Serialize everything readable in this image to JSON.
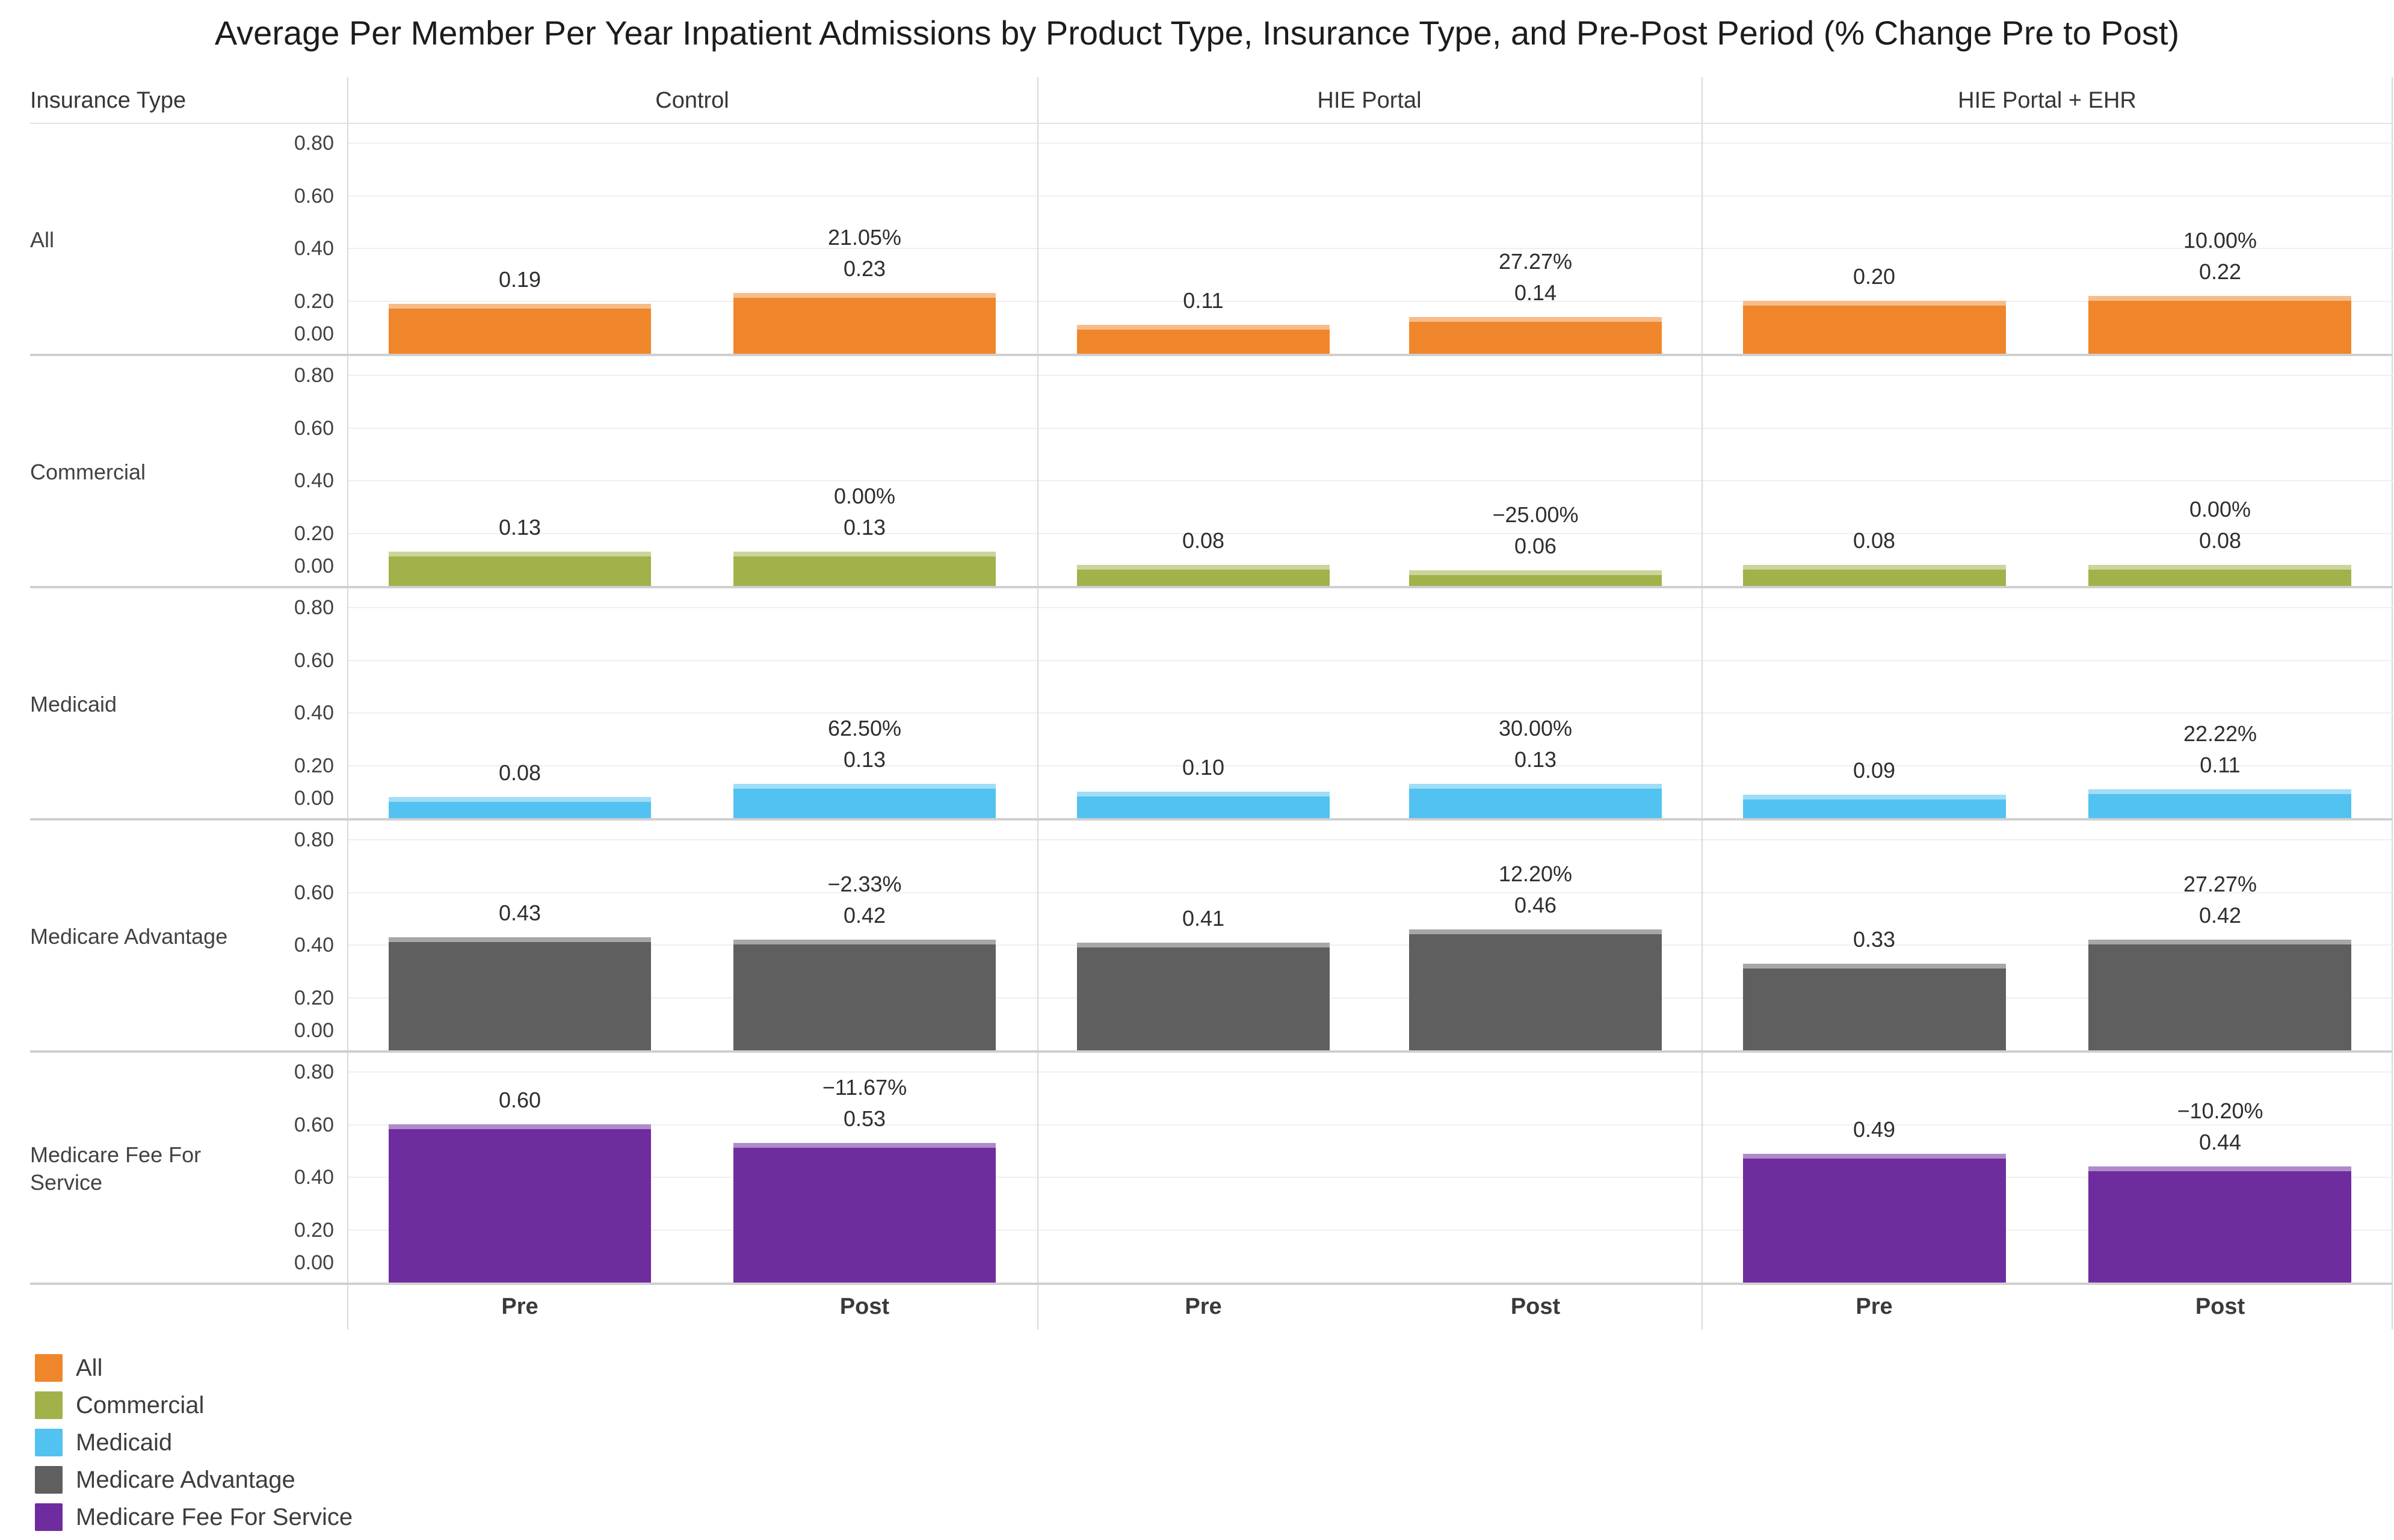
{
  "chart_data": {
    "type": "bar",
    "title": "Average Per Member Per Year Inpatient Admissions by Product Type, Insurance Type, and Pre-Post Period  (% Change Pre to Post)",
    "row_dimension_label": "Insurance Type",
    "col_headers": [
      "Control",
      "HIE Portal",
      "HIE Portal + EHR"
    ],
    "x_categories": [
      "Pre",
      "Post"
    ],
    "y_ticks": [
      "0.80",
      "0.60",
      "0.40",
      "0.20",
      "0.00"
    ],
    "y_tick_values": [
      0.8,
      0.6,
      0.4,
      0.2,
      0.0
    ],
    "ylim": [
      0,
      0.88
    ],
    "grid": true,
    "legend_position": "bottom-left",
    "rows": [
      {
        "label": "All",
        "color": "#F0862B",
        "panels": [
          {
            "pre": 0.19,
            "post": 0.23,
            "pre_label": "0.19",
            "post_label": "0.23",
            "pct_change": "21.05%"
          },
          {
            "pre": 0.11,
            "post": 0.14,
            "pre_label": "0.11",
            "post_label": "0.14",
            "pct_change": "27.27%"
          },
          {
            "pre": 0.2,
            "post": 0.22,
            "pre_label": "0.20",
            "post_label": "0.22",
            "pct_change": "10.00%"
          }
        ]
      },
      {
        "label": "Commercial",
        "color": "#A3B14A",
        "panels": [
          {
            "pre": 0.13,
            "post": 0.13,
            "pre_label": "0.13",
            "post_label": "0.13",
            "pct_change": "0.00%"
          },
          {
            "pre": 0.08,
            "post": 0.06,
            "pre_label": "0.08",
            "post_label": "0.06",
            "pct_change": "−25.00%"
          },
          {
            "pre": 0.08,
            "post": 0.08,
            "pre_label": "0.08",
            "post_label": "0.08",
            "pct_change": "0.00%"
          }
        ]
      },
      {
        "label": "Medicaid",
        "color": "#52C2F0",
        "panels": [
          {
            "pre": 0.08,
            "post": 0.13,
            "pre_label": "0.08",
            "post_label": "0.13",
            "pct_change": "62.50%"
          },
          {
            "pre": 0.1,
            "post": 0.13,
            "pre_label": "0.10",
            "post_label": "0.13",
            "pct_change": "30.00%"
          },
          {
            "pre": 0.09,
            "post": 0.11,
            "pre_label": "0.09",
            "post_label": "0.11",
            "pct_change": "22.22%"
          }
        ]
      },
      {
        "label": "Medicare Advantage",
        "color": "#5F5F5F",
        "panels": [
          {
            "pre": 0.43,
            "post": 0.42,
            "pre_label": "0.43",
            "post_label": "0.42",
            "pct_change": "−2.33%"
          },
          {
            "pre": 0.41,
            "post": 0.46,
            "pre_label": "0.41",
            "post_label": "0.46",
            "pct_change": "12.20%"
          },
          {
            "pre": 0.33,
            "post": 0.42,
            "pre_label": "0.33",
            "post_label": "0.42",
            "pct_change": "27.27%"
          }
        ]
      },
      {
        "label": "Medicare Fee For Service",
        "color": "#6E2C9F",
        "panels": [
          {
            "pre": 0.6,
            "post": 0.53,
            "pre_label": "0.60",
            "post_label": "0.53",
            "pct_change": "−11.67%"
          },
          null,
          {
            "pre": 0.49,
            "post": 0.44,
            "pre_label": "0.49",
            "post_label": "0.44",
            "pct_change": "−10.20%"
          }
        ]
      }
    ],
    "legend": [
      {
        "label": "All",
        "color": "#F0862B"
      },
      {
        "label": "Commercial",
        "color": "#A3B14A"
      },
      {
        "label": "Medicaid",
        "color": "#52C2F0"
      },
      {
        "label": "Medicare Advantage",
        "color": "#5F5F5F"
      },
      {
        "label": "Medicare Fee For Service",
        "color": "#6E2C9F"
      }
    ]
  }
}
